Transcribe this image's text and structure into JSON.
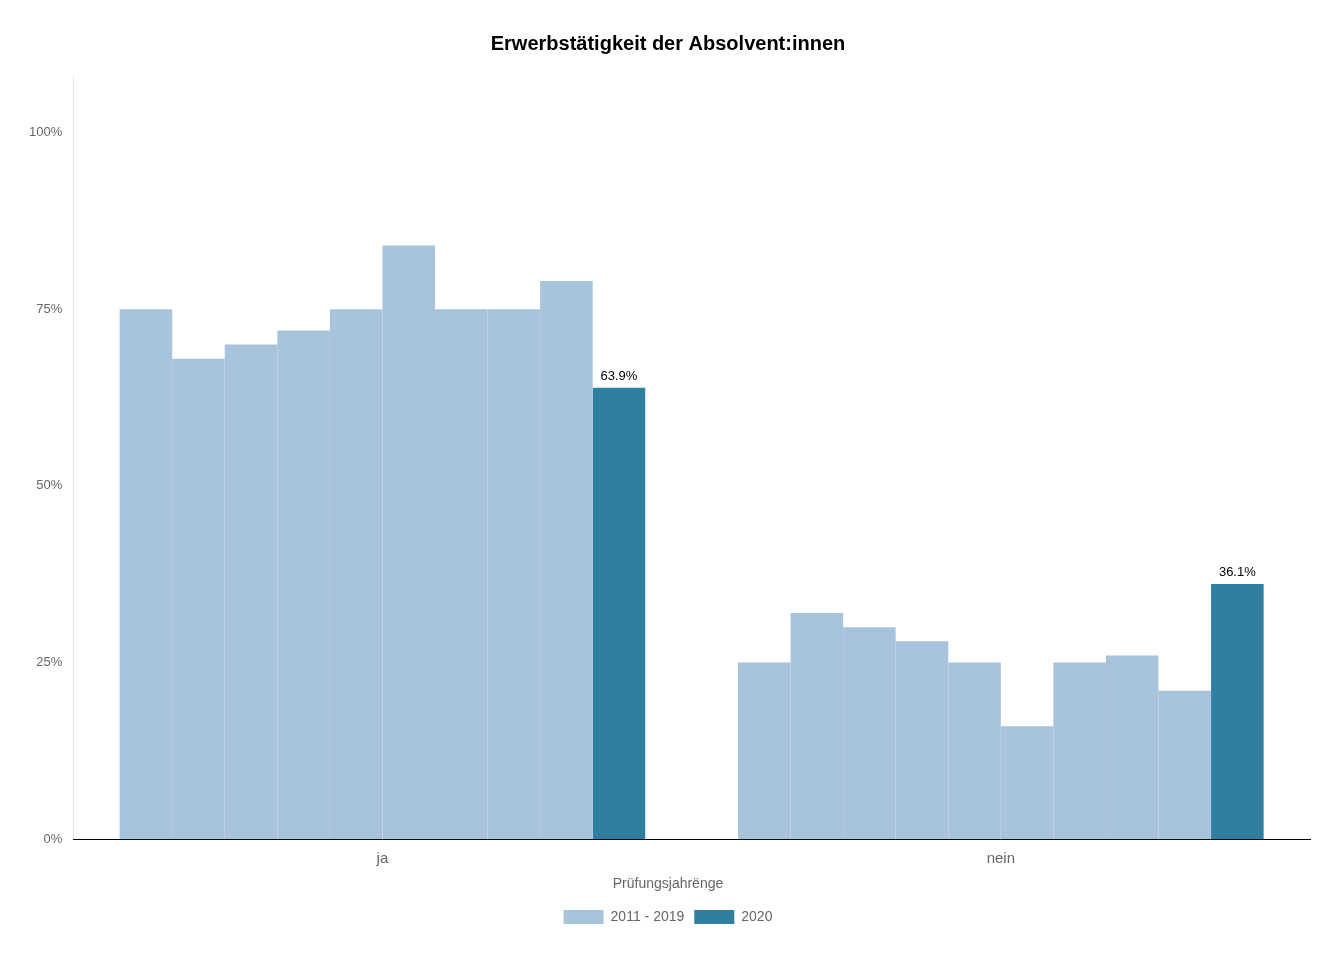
{
  "chart_data": {
    "type": "bar",
    "title": "Erwerbstätigkeit der Absolvent:innen",
    "categories": [
      "ja",
      "nein"
    ],
    "series": [
      {
        "name": "2011 - 2019",
        "color": "#a8c4dc",
        "values": [
          [
            75.0,
            68.0,
            70.0,
            72.0,
            75.0,
            84.0,
            75.0,
            75.0,
            79.0
          ],
          [
            25.0,
            32.0,
            30.0,
            28.0,
            25.0,
            16.0,
            25.0,
            26.0,
            21.0
          ]
        ]
      },
      {
        "name": "2020",
        "color": "#2e7fa0",
        "values": [
          63.9,
          36.1
        ],
        "data_labels": true,
        "value_labels": [
          "63.9%",
          "36.1%"
        ]
      }
    ],
    "legend_title": "Prüfungsjahrënge",
    "legend": "bottom",
    "ylim": [
      0,
      108
    ],
    "yticks": [
      {
        "value": 0,
        "label": "0%"
      },
      {
        "value": 25,
        "label": "25%"
      },
      {
        "value": 50,
        "label": "50%"
      },
      {
        "value": 75,
        "label": "75%"
      },
      {
        "value": 100,
        "label": "100%"
      }
    ],
    "grid": false
  }
}
